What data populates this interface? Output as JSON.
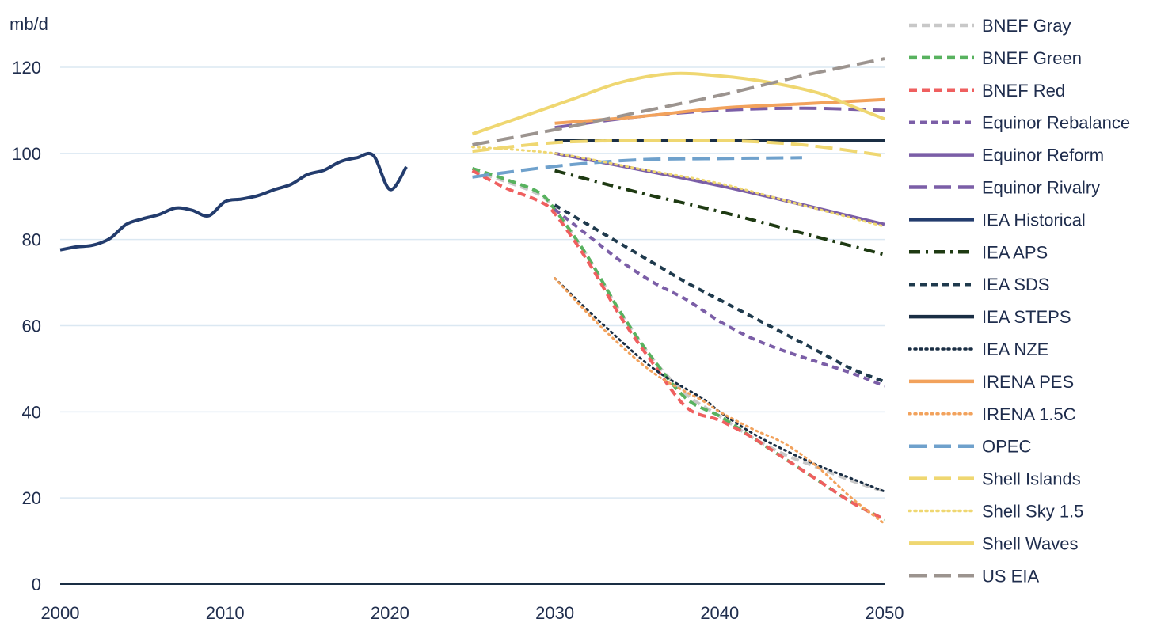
{
  "chart_data": {
    "type": "line",
    "ylabel": "mb/d",
    "xlim": [
      2000,
      2050
    ],
    "ylim": [
      0,
      120
    ],
    "x_ticks": [
      2000,
      2010,
      2020,
      2030,
      2040,
      2050
    ],
    "y_ticks": [
      0,
      20,
      40,
      60,
      80,
      100,
      120
    ],
    "grid": "horizontal",
    "legend_position": "right",
    "series": [
      {
        "name": "BNEF Gray",
        "color": "#c8c8c8",
        "dash": "dash",
        "x": [
          2025,
          2027,
          2029,
          2030,
          2032,
          2034,
          2036,
          2038,
          2040,
          2042,
          2044,
          2046,
          2048,
          2050
        ],
        "y": [
          96,
          93.5,
          90.5,
          87,
          76,
          63,
          52,
          44,
          39,
          34,
          30,
          27,
          24,
          21.5
        ]
      },
      {
        "name": "BNEF Green",
        "color": "#58b25f",
        "dash": "dash",
        "x": [
          2025,
          2027,
          2029,
          2030,
          2032,
          2034,
          2036,
          2038,
          2040,
          2042,
          2044,
          2046,
          2048,
          2050
        ],
        "y": [
          96.5,
          94,
          91,
          87,
          76,
          63,
          52,
          43,
          39,
          34,
          29,
          24,
          19,
          15
        ]
      },
      {
        "name": "BNEF Red",
        "color": "#ef5f5f",
        "dash": "dash",
        "x": [
          2025,
          2027,
          2029,
          2030,
          2032,
          2034,
          2036,
          2038,
          2040,
          2042,
          2044,
          2046,
          2048,
          2050
        ],
        "y": [
          96,
          92,
          89,
          86,
          75,
          62,
          51,
          41,
          38,
          34,
          29,
          24,
          19,
          15
        ]
      },
      {
        "name": "Equinor Rebalance",
        "color": "#7b5ea7",
        "dash": "short-dash",
        "x": [
          2030,
          2032,
          2034,
          2036,
          2038,
          2040,
          2042,
          2044,
          2046,
          2048,
          2050
        ],
        "y": [
          87,
          81,
          75,
          70,
          66,
          61,
          57,
          54,
          51.5,
          49,
          46
        ]
      },
      {
        "name": "Equinor Reform",
        "color": "#7b5ea7",
        "dash": "solid",
        "x": [
          2030,
          2040,
          2050
        ],
        "y": [
          100,
          92.5,
          83.5
        ]
      },
      {
        "name": "Equinor Rivalry",
        "color": "#7b5ea7",
        "dash": "long-dash",
        "x": [
          2030,
          2035,
          2040,
          2045,
          2050
        ],
        "y": [
          106,
          108.5,
          110,
          110.5,
          110
        ]
      },
      {
        "name": "IEA Historical",
        "color": "#233c6d",
        "dash": "solid",
        "x": [
          2000,
          2001,
          2002,
          2003,
          2004,
          2005,
          2006,
          2007,
          2008,
          2009,
          2010,
          2011,
          2012,
          2013,
          2014,
          2015,
          2016,
          2017,
          2018,
          2019,
          2020,
          2021
        ],
        "y": [
          77.6,
          78.3,
          78.7,
          80.2,
          83.5,
          84.8,
          85.8,
          87.3,
          86.8,
          85.5,
          88.8,
          89.4,
          90.2,
          91.6,
          92.8,
          95.1,
          96.1,
          98.1,
          99,
          99.5,
          91.6,
          96.9
        ]
      },
      {
        "name": "IEA APS",
        "color": "#1e3a12",
        "dash": "dash-dot",
        "x": [
          2030,
          2035,
          2040,
          2045,
          2050
        ],
        "y": [
          96,
          91,
          86.5,
          81.5,
          76.5
        ]
      },
      {
        "name": "IEA SDS",
        "color": "#1f3a4d",
        "dash": "short-dash",
        "x": [
          2030,
          2032,
          2034,
          2036,
          2038,
          2040,
          2042,
          2044,
          2046,
          2048,
          2050
        ],
        "y": [
          88,
          83.5,
          79,
          74.5,
          70,
          66,
          62,
          58,
          54,
          50,
          47
        ]
      },
      {
        "name": "IEA STEPS",
        "color": "#1a2e44",
        "dash": "solid",
        "x": [
          2030,
          2050
        ],
        "y": [
          103,
          103
        ]
      },
      {
        "name": "IEA NZE",
        "color": "#1a2e44",
        "dash": "dot",
        "x": [
          2030,
          2033,
          2036,
          2039,
          2040,
          2042,
          2044,
          2046,
          2048,
          2050
        ],
        "y": [
          71,
          60,
          50,
          43,
          40,
          35,
          31,
          27.5,
          24.5,
          21.5
        ]
      },
      {
        "name": "IRENA PES",
        "color": "#f2a25c",
        "dash": "solid",
        "x": [
          2030,
          2035,
          2040,
          2045,
          2050
        ],
        "y": [
          107,
          108.5,
          110.5,
          111.5,
          112.5
        ]
      },
      {
        "name": "IRENA 1.5C",
        "color": "#f2a25c",
        "dash": "dot",
        "x": [
          2030,
          2033,
          2036,
          2039,
          2040,
          2042,
          2044,
          2046,
          2048,
          2050
        ],
        "y": [
          71,
          59,
          49,
          42.5,
          40,
          36,
          32.5,
          27,
          20,
          14
        ]
      },
      {
        "name": "OPEC",
        "color": "#6fa1cc",
        "dash": "long-dash",
        "x": [
          2025,
          2030,
          2035,
          2040,
          2045
        ],
        "y": [
          94.5,
          97,
          98.5,
          98.8,
          99
        ]
      },
      {
        "name": "Shell Islands",
        "color": "#efd771",
        "dash": "long-dash",
        "x": [
          2025,
          2030,
          2035,
          2040,
          2045,
          2050
        ],
        "y": [
          100.5,
          102.5,
          103,
          103,
          102,
          99.5
        ]
      },
      {
        "name": "Shell Sky 1.5",
        "color": "#efd771",
        "dash": "dot",
        "x": [
          2025,
          2030,
          2035,
          2040,
          2045,
          2050
        ],
        "y": [
          101.5,
          100,
          96.5,
          93,
          88,
          83
        ]
      },
      {
        "name": "Shell Waves",
        "color": "#efd771",
        "dash": "solid",
        "x": [
          2025,
          2028,
          2031,
          2034,
          2037,
          2040,
          2043,
          2046,
          2048,
          2050
        ],
        "y": [
          104.5,
          108.5,
          112.5,
          116.5,
          118.5,
          118,
          116.5,
          114,
          111,
          108
        ]
      },
      {
        "name": "US EIA",
        "color": "#9c948f",
        "dash": "long-dash",
        "x": [
          2025,
          2030,
          2035,
          2040,
          2045,
          2050
        ],
        "y": [
          102,
          105.5,
          109.5,
          113.5,
          118,
          122
        ]
      }
    ]
  }
}
